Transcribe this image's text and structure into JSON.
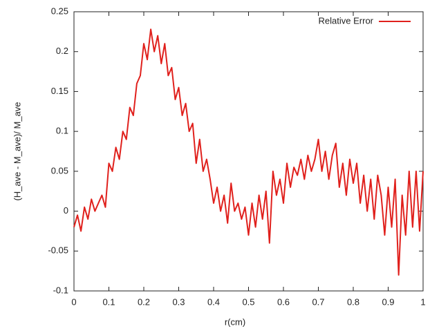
{
  "chart_data": {
    "type": "line",
    "xlabel": "r(cm)",
    "ylabel": "(H_ave - M_ave)/ M_ave",
    "x": [
      0,
      0.01,
      0.02,
      0.03,
      0.04,
      0.05,
      0.06,
      0.07,
      0.08,
      0.09,
      0.1,
      0.11,
      0.12,
      0.13,
      0.14,
      0.15,
      0.16,
      0.17,
      0.18,
      0.19,
      0.2,
      0.21,
      0.22,
      0.23,
      0.24,
      0.25,
      0.26,
      0.27,
      0.28,
      0.29,
      0.3,
      0.31,
      0.32,
      0.33,
      0.34,
      0.35,
      0.36,
      0.37,
      0.38,
      0.39,
      0.4,
      0.41,
      0.42,
      0.43,
      0.44,
      0.45,
      0.46,
      0.47,
      0.48,
      0.49,
      0.5,
      0.51,
      0.52,
      0.53,
      0.54,
      0.55,
      0.56,
      0.57,
      0.58,
      0.59,
      0.6,
      0.61,
      0.62,
      0.63,
      0.64,
      0.65,
      0.66,
      0.67,
      0.68,
      0.69,
      0.7,
      0.71,
      0.72,
      0.73,
      0.74,
      0.75,
      0.76,
      0.77,
      0.78,
      0.79,
      0.8,
      0.81,
      0.82,
      0.83,
      0.84,
      0.85,
      0.86,
      0.87,
      0.88,
      0.89,
      0.9,
      0.91,
      0.92,
      0.93,
      0.94,
      0.95,
      0.96,
      0.97,
      0.98,
      0.99,
      1
    ],
    "series": [
      {
        "name": "Relative Error",
        "color": "#e0201c",
        "values": [
          -0.02,
          -0.005,
          -0.025,
          0.005,
          -0.01,
          0.015,
          0.0,
          0.01,
          0.02,
          0.005,
          0.06,
          0.05,
          0.08,
          0.065,
          0.1,
          0.09,
          0.13,
          0.12,
          0.16,
          0.17,
          0.21,
          0.19,
          0.228,
          0.2,
          0.22,
          0.185,
          0.21,
          0.17,
          0.18,
          0.14,
          0.155,
          0.12,
          0.135,
          0.1,
          0.11,
          0.06,
          0.09,
          0.05,
          0.065,
          0.04,
          0.01,
          0.03,
          0.0,
          0.02,
          -0.015,
          0.035,
          0.0,
          0.01,
          -0.01,
          0.005,
          -0.03,
          0.01,
          -0.02,
          0.02,
          -0.01,
          0.025,
          -0.04,
          0.05,
          0.02,
          0.04,
          0.01,
          0.06,
          0.03,
          0.055,
          0.045,
          0.065,
          0.04,
          0.07,
          0.05,
          0.065,
          0.09,
          0.05,
          0.075,
          0.04,
          0.07,
          0.085,
          0.03,
          0.06,
          0.02,
          0.065,
          0.035,
          0.06,
          0.01,
          0.045,
          0.0,
          0.04,
          -0.01,
          0.045,
          0.02,
          -0.03,
          0.03,
          -0.02,
          0.04,
          -0.08,
          0.02,
          -0.03,
          0.05,
          -0.02,
          0.05,
          -0.025,
          0.05
        ]
      }
    ],
    "xlim": [
      0,
      1
    ],
    "ylim": [
      -0.1,
      0.25
    ],
    "xticks": [
      0,
      0.1,
      0.2,
      0.3,
      0.4,
      0.5,
      0.6,
      0.7,
      0.8,
      0.9,
      1
    ],
    "yticks": [
      -0.1,
      -0.05,
      0,
      0.05,
      0.1,
      0.15,
      0.2,
      0.25
    ],
    "grid": false,
    "legend": "top-right"
  }
}
